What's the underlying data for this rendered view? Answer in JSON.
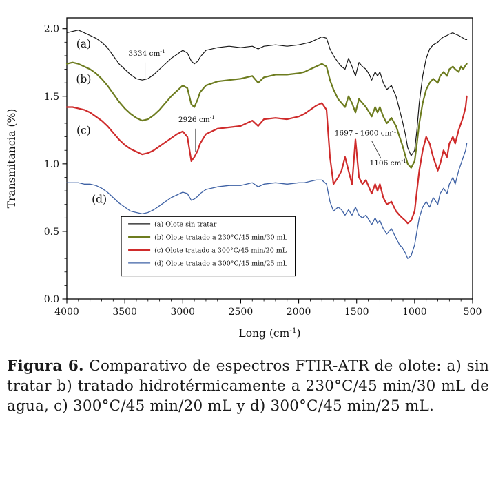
{
  "figure": {
    "caption_label": "Figura 6.",
    "caption_text": " Comparativo de espectros FTIR-ATR de olote: a) sin tratar b) tratado hidrotérmicamente a 230°C/45 min/30 mL de agua, c) 300°C/45 min/20 mL y d) 300°C/45 min/25 mL."
  },
  "chart_data": {
    "type": "line",
    "title": "",
    "xlabel": {
      "pre": "Long (cm",
      "sup": "-1",
      "post": ")"
    },
    "ylabel": "Transmitancia (%)",
    "grid": false,
    "legend_position": "lower-left-inside",
    "x_axis": {
      "min": 500,
      "max": 4000,
      "reversed": true,
      "ticks": [
        4000,
        3500,
        3000,
        2500,
        2000,
        1500,
        1000,
        500
      ],
      "tick_labels": [
        "4000",
        "3500",
        "3000",
        "2500",
        "2000",
        "1500",
        "1000",
        "500"
      ],
      "minor_step": 100
    },
    "y_axis": {
      "min": 0.0,
      "max": 2.0,
      "plot_min": 0.0,
      "plot_max": 2.08,
      "ticks": [
        0.0,
        0.5,
        1.0,
        1.5,
        2.0
      ],
      "tick_labels": [
        "0.0",
        "0.5",
        "1.0",
        "1.5",
        "2.0"
      ],
      "minor_step": 0.1
    },
    "x": [
      4000,
      3950,
      3900,
      3850,
      3800,
      3750,
      3700,
      3650,
      3600,
      3550,
      3500,
      3450,
      3400,
      3350,
      3300,
      3250,
      3200,
      3150,
      3100,
      3050,
      3000,
      2960,
      2926,
      2900,
      2870,
      2850,
      2800,
      2700,
      2600,
      2500,
      2400,
      2350,
      2300,
      2200,
      2100,
      2000,
      1950,
      1900,
      1850,
      1800,
      1760,
      1730,
      1700,
      1660,
      1630,
      1600,
      1570,
      1540,
      1510,
      1480,
      1450,
      1420,
      1390,
      1370,
      1340,
      1320,
      1300,
      1270,
      1240,
      1200,
      1160,
      1130,
      1106,
      1080,
      1060,
      1030,
      1000,
      980,
      960,
      930,
      900,
      870,
      840,
      800,
      780,
      750,
      720,
      700,
      670,
      650,
      620,
      600,
      580,
      560,
      550
    ],
    "series": [
      {
        "name": "(a) Olote sin tratar",
        "curve_label": "(a)",
        "label_pos": [
          3855,
          1.86
        ],
        "color": "#161616",
        "width": 1.2,
        "values": [
          1.97,
          1.98,
          1.99,
          1.97,
          1.95,
          1.93,
          1.9,
          1.86,
          1.8,
          1.74,
          1.7,
          1.66,
          1.63,
          1.62,
          1.63,
          1.66,
          1.7,
          1.74,
          1.78,
          1.81,
          1.84,
          1.82,
          1.76,
          1.74,
          1.76,
          1.79,
          1.84,
          1.86,
          1.87,
          1.86,
          1.87,
          1.85,
          1.87,
          1.88,
          1.87,
          1.88,
          1.89,
          1.9,
          1.92,
          1.94,
          1.93,
          1.85,
          1.8,
          1.75,
          1.72,
          1.7,
          1.78,
          1.72,
          1.65,
          1.75,
          1.72,
          1.7,
          1.66,
          1.62,
          1.68,
          1.65,
          1.68,
          1.6,
          1.55,
          1.58,
          1.5,
          1.4,
          1.32,
          1.22,
          1.12,
          1.06,
          1.1,
          1.25,
          1.45,
          1.65,
          1.78,
          1.85,
          1.88,
          1.9,
          1.92,
          1.94,
          1.95,
          1.96,
          1.97,
          1.96,
          1.95,
          1.94,
          1.93,
          1.92,
          1.92
        ]
      },
      {
        "name": "(b) Olote tratado a 230°C/45 min/30 mL",
        "curve_label": "(b)",
        "label_pos": [
          3855,
          1.6
        ],
        "color": "#6d7c1f",
        "width": 2.2,
        "values": [
          1.74,
          1.75,
          1.74,
          1.72,
          1.7,
          1.67,
          1.63,
          1.58,
          1.52,
          1.46,
          1.41,
          1.37,
          1.34,
          1.32,
          1.33,
          1.36,
          1.4,
          1.45,
          1.5,
          1.54,
          1.58,
          1.56,
          1.44,
          1.42,
          1.48,
          1.53,
          1.58,
          1.61,
          1.62,
          1.63,
          1.65,
          1.6,
          1.64,
          1.66,
          1.66,
          1.67,
          1.68,
          1.7,
          1.72,
          1.74,
          1.72,
          1.62,
          1.55,
          1.48,
          1.45,
          1.42,
          1.5,
          1.45,
          1.38,
          1.48,
          1.45,
          1.42,
          1.38,
          1.35,
          1.42,
          1.38,
          1.42,
          1.35,
          1.3,
          1.34,
          1.28,
          1.2,
          1.14,
          1.06,
          1.0,
          0.97,
          1.02,
          1.15,
          1.3,
          1.45,
          1.55,
          1.6,
          1.63,
          1.6,
          1.65,
          1.68,
          1.65,
          1.7,
          1.72,
          1.7,
          1.68,
          1.72,
          1.7,
          1.73,
          1.74
        ]
      },
      {
        "name": "(c) Olote tratado a 300°C/45 min/20 mL",
        "curve_label": "(c)",
        "label_pos": [
          3855,
          1.22
        ],
        "color": "#cf2b2b",
        "width": 2.2,
        "values": [
          1.42,
          1.42,
          1.41,
          1.4,
          1.38,
          1.35,
          1.32,
          1.28,
          1.23,
          1.18,
          1.14,
          1.11,
          1.09,
          1.07,
          1.08,
          1.1,
          1.13,
          1.16,
          1.19,
          1.22,
          1.24,
          1.2,
          1.02,
          1.05,
          1.1,
          1.15,
          1.22,
          1.26,
          1.27,
          1.28,
          1.32,
          1.28,
          1.33,
          1.34,
          1.33,
          1.35,
          1.37,
          1.4,
          1.43,
          1.45,
          1.4,
          1.05,
          0.85,
          0.9,
          0.95,
          1.05,
          0.95,
          0.85,
          1.18,
          0.9,
          0.85,
          0.88,
          0.82,
          0.78,
          0.85,
          0.8,
          0.85,
          0.75,
          0.7,
          0.72,
          0.65,
          0.62,
          0.6,
          0.58,
          0.56,
          0.58,
          0.65,
          0.8,
          0.95,
          1.1,
          1.2,
          1.15,
          1.05,
          0.95,
          1.0,
          1.1,
          1.05,
          1.15,
          1.2,
          1.15,
          1.25,
          1.3,
          1.35,
          1.42,
          1.5
        ]
      },
      {
        "name": "(d) Olote tratado a 300°C/45 min/25 mL",
        "curve_label": "(d)",
        "label_pos": [
          3720,
          0.71
        ],
        "color": "#3f62a5",
        "width": 1.3,
        "values": [
          0.86,
          0.86,
          0.86,
          0.85,
          0.85,
          0.84,
          0.82,
          0.79,
          0.75,
          0.71,
          0.68,
          0.65,
          0.64,
          0.63,
          0.64,
          0.66,
          0.69,
          0.72,
          0.75,
          0.77,
          0.79,
          0.78,
          0.73,
          0.74,
          0.76,
          0.78,
          0.81,
          0.83,
          0.84,
          0.84,
          0.86,
          0.83,
          0.85,
          0.86,
          0.85,
          0.86,
          0.86,
          0.87,
          0.88,
          0.88,
          0.85,
          0.72,
          0.65,
          0.68,
          0.66,
          0.62,
          0.66,
          0.62,
          0.68,
          0.62,
          0.6,
          0.62,
          0.58,
          0.55,
          0.6,
          0.56,
          0.58,
          0.52,
          0.48,
          0.52,
          0.45,
          0.4,
          0.38,
          0.34,
          0.3,
          0.32,
          0.4,
          0.5,
          0.6,
          0.68,
          0.72,
          0.68,
          0.75,
          0.7,
          0.78,
          0.82,
          0.78,
          0.85,
          0.9,
          0.85,
          0.95,
          1.0,
          1.05,
          1.1,
          1.15
        ]
      }
    ],
    "annotations": [
      {
        "text": "3334 cm",
        "sup": "-1",
        "x": 3310,
        "y": 1.8,
        "anchor": "middle",
        "line": {
          "x1": 3325,
          "y1": 1.62,
          "x2": 3325,
          "y2": 1.75
        }
      },
      {
        "text": "2926 cm",
        "sup": "-1",
        "x": 2880,
        "y": 1.31,
        "anchor": "middle",
        "line": {
          "x1": 2890,
          "y1": 1.09,
          "x2": 2890,
          "y2": 1.26
        }
      },
      {
        "text": "1697 - 1600 cm",
        "sup": "-1",
        "x": 1690,
        "y": 1.21,
        "anchor": "start",
        "line": null
      },
      {
        "text": "1106 cm",
        "sup": "-1",
        "x": 1230,
        "y": 0.99,
        "anchor": "middle",
        "line": {
          "x1": 1290,
          "y1": 1.04,
          "x2": 1370,
          "y2": 1.17
        }
      }
    ],
    "legend": {
      "border_color": "#000000",
      "bounds": {
        "x1": 3530,
        "y1": 0.61,
        "x2": 2030,
        "y2": 0.17
      }
    }
  }
}
